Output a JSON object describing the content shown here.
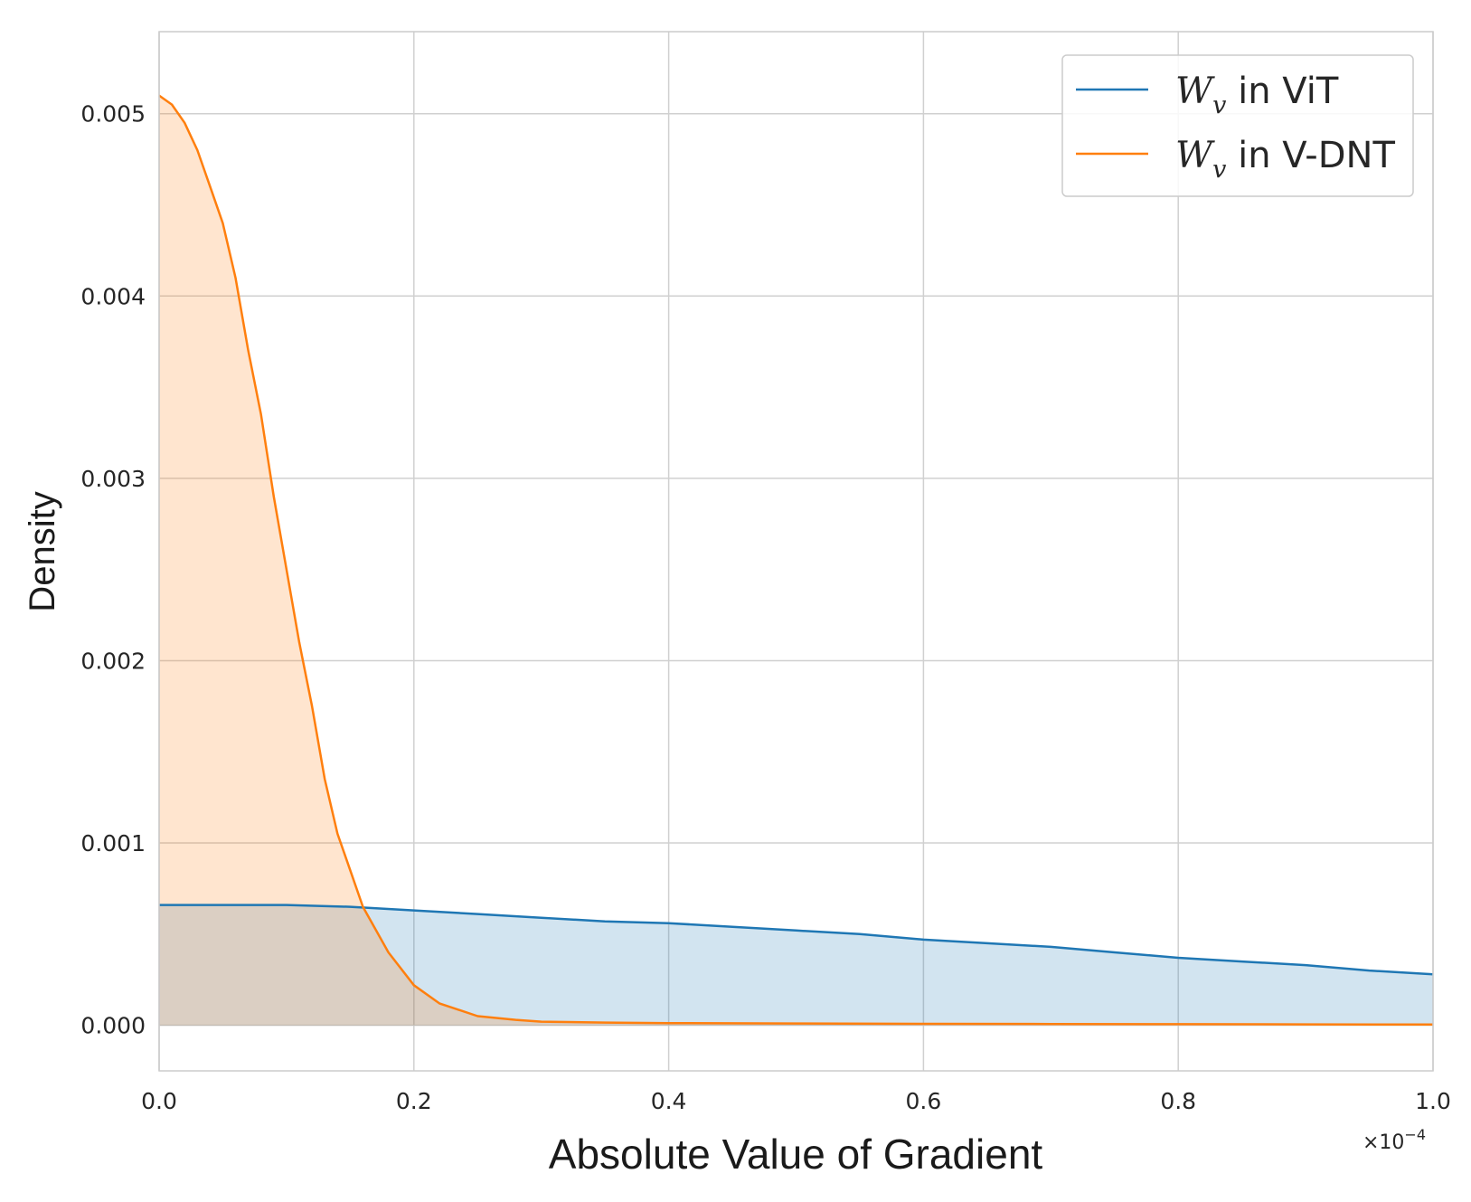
{
  "chart_data": {
    "type": "area",
    "xlabel": "Absolute Value of Gradient",
    "ylabel": "Density",
    "x_offset_label": "×10",
    "x_offset_exponent": "−4",
    "xlim": [
      0.0,
      1.0
    ],
    "ylim": [
      -0.00025,
      0.00545
    ],
    "xticks": [
      "0.0",
      "0.2",
      "0.4",
      "0.6",
      "0.8",
      "1.0"
    ],
    "yticks": [
      "0.000",
      "0.001",
      "0.002",
      "0.003",
      "0.004",
      "0.005"
    ],
    "grid": true,
    "legend_position": "top-right",
    "series": [
      {
        "name": "W_v in ViT",
        "legend_symbol": "W",
        "legend_subscript": "v",
        "legend_rest": " in ViT",
        "color": "#1f77b4",
        "fill_color": "#cfe1ef",
        "x": [
          0.0,
          0.05,
          0.1,
          0.15,
          0.2,
          0.25,
          0.3,
          0.35,
          0.4,
          0.45,
          0.5,
          0.55,
          0.6,
          0.65,
          0.7,
          0.75,
          0.8,
          0.85,
          0.9,
          0.95,
          1.0
        ],
        "y": [
          0.00066,
          0.00066,
          0.00066,
          0.00065,
          0.00063,
          0.00061,
          0.00059,
          0.00057,
          0.00056,
          0.00054,
          0.00052,
          0.0005,
          0.00047,
          0.00045,
          0.00043,
          0.0004,
          0.00037,
          0.00035,
          0.00033,
          0.0003,
          0.00028
        ]
      },
      {
        "name": "W_v in V-DNT",
        "legend_symbol": "W",
        "legend_subscript": "v",
        "legend_rest": " in V-DNT",
        "color": "#ff7f0e",
        "fill_color": "#fde0c9",
        "x": [
          0.0,
          0.01,
          0.02,
          0.03,
          0.04,
          0.05,
          0.06,
          0.07,
          0.08,
          0.09,
          0.1,
          0.11,
          0.12,
          0.13,
          0.14,
          0.15,
          0.16,
          0.18,
          0.2,
          0.22,
          0.25,
          0.28,
          0.3,
          0.35,
          0.4,
          0.5,
          0.6,
          0.7,
          0.8,
          0.9,
          1.0
        ],
        "y": [
          0.0051,
          0.00505,
          0.00495,
          0.0048,
          0.0046,
          0.0044,
          0.0041,
          0.0037,
          0.00335,
          0.0029,
          0.0025,
          0.0021,
          0.00175,
          0.00135,
          0.00105,
          0.00085,
          0.00065,
          0.0004,
          0.00022,
          0.00012,
          5e-05,
          3e-05,
          2e-05,
          1.5e-05,
          1.2e-05,
          1e-05,
          8e-06,
          7e-06,
          6e-06,
          5e-06,
          4e-06
        ]
      }
    ]
  }
}
